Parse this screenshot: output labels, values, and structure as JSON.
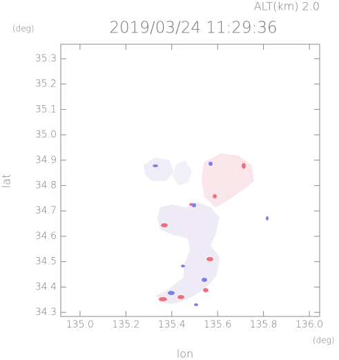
{
  "chart_data": {
    "type": "map",
    "title": "2019/03/24 11:29:36",
    "subtitle": "ALT(km) 2.0",
    "x_label": "lon",
    "y_label": "lat",
    "x_unit": "(deg)",
    "y_unit": "(deg)",
    "xlim": [
      134.916,
      136.045
    ],
    "ylim": [
      34.284,
      35.357
    ],
    "xticks": [
      {
        "value": 135,
        "label": "135.0"
      },
      135.2,
      135.4,
      135.6,
      135.8,
      {
        "value": 136,
        "label": "136.0"
      }
    ],
    "yticks": [
      34.3,
      34.4,
      34.5,
      34.6,
      34.7,
      34.8,
      34.9,
      {
        "value": 35,
        "label": "35.0"
      },
      35.1,
      35.2,
      35.3
    ]
  }
}
